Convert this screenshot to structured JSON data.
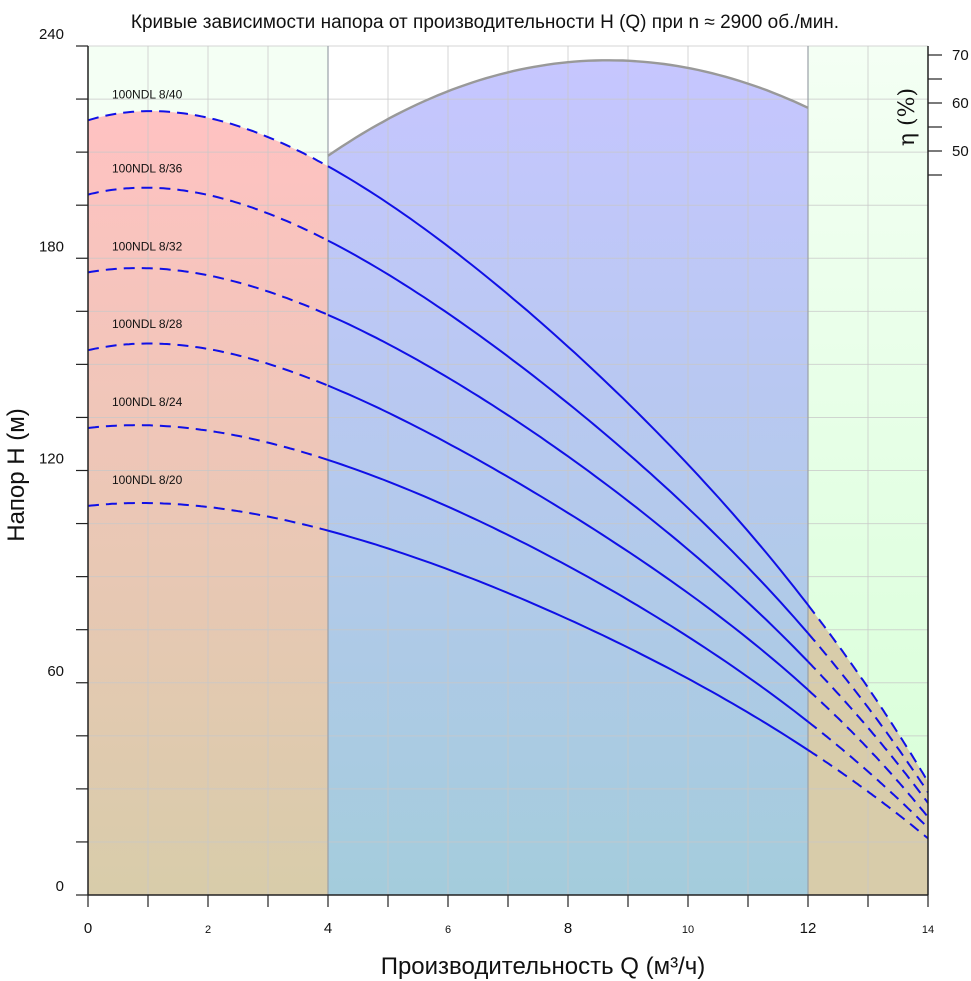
{
  "chart_data": {
    "type": "line",
    "title": "Кривые зависимости напора от производительности H (Q) при n ≈ 2900 об./мин.",
    "xlabel": "Производительность Q (м³/ч)",
    "ylabel": "Напор H (м)",
    "eta_label": "η (%)",
    "xlim": [
      0,
      14
    ],
    "ylim": [
      0,
      240
    ],
    "eta_lim": [
      45,
      70
    ],
    "x_ticks": [
      {
        "value": 0,
        "label": "0",
        "size": "big"
      },
      {
        "value": 2,
        "label": "2",
        "size": "small"
      },
      {
        "value": 4,
        "label": "4",
        "size": "big"
      },
      {
        "value": 6,
        "label": "6",
        "size": "small"
      },
      {
        "value": 8,
        "label": "8",
        "size": "big"
      },
      {
        "value": 10,
        "label": "10",
        "size": "small"
      },
      {
        "value": 12,
        "label": "12",
        "size": "big"
      },
      {
        "value": 14,
        "label": "14",
        "size": "small"
      }
    ],
    "y_ticks": [
      {
        "value": 0,
        "label": "0"
      },
      {
        "value": 60,
        "label": "60"
      },
      {
        "value": 120,
        "label": "120"
      },
      {
        "value": 180,
        "label": "180"
      },
      {
        "value": 240,
        "label": "240"
      }
    ],
    "eta_ticks": [
      {
        "value": 50,
        "label": "50"
      },
      {
        "value": 60,
        "label": "60"
      },
      {
        "value": 70,
        "label": "70"
      }
    ],
    "working_range": [
      4,
      12
    ],
    "series": [
      {
        "name": "100NDL 8/40",
        "q_max": 14,
        "points": [
          [
            0,
            219
          ],
          [
            4,
            206
          ],
          [
            8,
            155
          ],
          [
            12,
            82
          ],
          [
            14,
            32
          ]
        ]
      },
      {
        "name": "100NDL 8/36",
        "q_max": 14,
        "points": [
          [
            0,
            198
          ],
          [
            4,
            185
          ],
          [
            8,
            139
          ],
          [
            12,
            74
          ],
          [
            14,
            29
          ]
        ]
      },
      {
        "name": "100NDL 8/32",
        "q_max": 14,
        "points": [
          [
            0,
            176
          ],
          [
            4,
            164
          ],
          [
            8,
            124
          ],
          [
            12,
            66
          ],
          [
            14,
            26
          ]
        ]
      },
      {
        "name": "100NDL 8/28",
        "q_max": 14,
        "points": [
          [
            0,
            154
          ],
          [
            4,
            144
          ],
          [
            8,
            108
          ],
          [
            12,
            58
          ],
          [
            14,
            22
          ]
        ]
      },
      {
        "name": "100NDL 8/24",
        "q_max": 14,
        "points": [
          [
            0,
            132
          ],
          [
            4,
            123
          ],
          [
            8,
            93
          ],
          [
            12,
            49
          ],
          [
            14,
            19
          ]
        ]
      },
      {
        "name": "100NDL 8/20",
        "q_max": 14,
        "points": [
          [
            0,
            110
          ],
          [
            4,
            103
          ],
          [
            8,
            78
          ],
          [
            12,
            41
          ],
          [
            14,
            16
          ]
        ]
      }
    ],
    "efficiency": {
      "points": [
        [
          4,
          49
        ],
        [
          8,
          68.5
        ],
        [
          9,
          68.8
        ],
        [
          12,
          59
        ]
      ]
    },
    "colors": {
      "curve": "#1010e6",
      "efficiency": "#999999",
      "grid": "#c8c8c8",
      "left_top": "#ffc2c2",
      "left_bottom": "#d8ccaa",
      "mid_top": "#c6c6ff",
      "mid_bottom": "#a4ccdc",
      "right_top": "#f0fff0",
      "right_bottom": "#d8ffd8",
      "right_lower": "#d8ccaa"
    }
  }
}
